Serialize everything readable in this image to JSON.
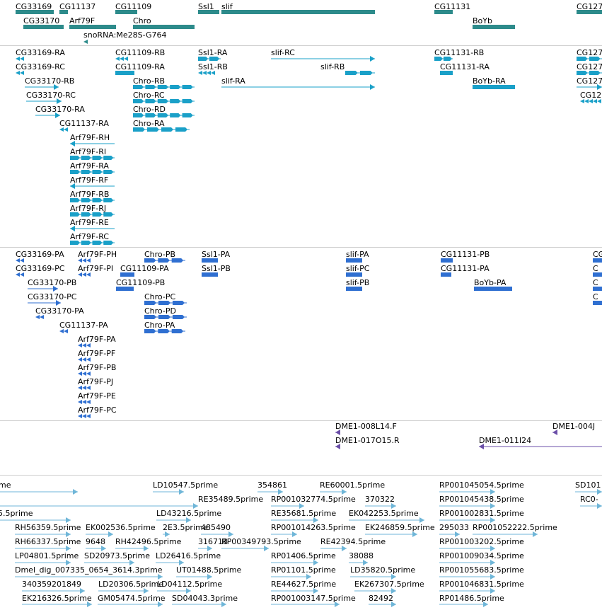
{
  "colors": {
    "gene": "#2d8b8b",
    "transcript": "#1aa0c8",
    "protein": "#2f6fd1",
    "clone": "#6b4fa8",
    "est": "#6fb6d8",
    "separator": "#cfcfcf"
  },
  "tracks": {
    "gene": {
      "features": [
        {
          "label": "CG33169"
        },
        {
          "label": "CG11137"
        },
        {
          "label": "CG11109"
        },
        {
          "label": "Ssl1"
        },
        {
          "label": "slif"
        },
        {
          "label": "CG11131"
        },
        {
          "label": "CG127"
        },
        {
          "label": "CG33170"
        },
        {
          "label": "Arf79F"
        },
        {
          "label": "Chro"
        },
        {
          "label": "BoYb"
        },
        {
          "label": "snoRNA:Me28S-G764"
        }
      ]
    },
    "transcript": {
      "features": [
        {
          "label": "CG33169-RA"
        },
        {
          "label": "CG11109-RB"
        },
        {
          "label": "Ssl1-RA"
        },
        {
          "label": "slif-RC"
        },
        {
          "label": "CG11131-RB"
        },
        {
          "label": "CG127"
        },
        {
          "label": "CG33169-RC"
        },
        {
          "label": "CG11109-RA"
        },
        {
          "label": "Ssl1-RB"
        },
        {
          "label": "slif-RB"
        },
        {
          "label": "CG11131-RA"
        },
        {
          "label": "CG127"
        },
        {
          "label": "CG33170-RB"
        },
        {
          "label": "Chro-RB"
        },
        {
          "label": "slif-RA"
        },
        {
          "label": "BoYb-RA"
        },
        {
          "label": "CG127"
        },
        {
          "label": "CG33170-RC"
        },
        {
          "label": "Chro-RC"
        },
        {
          "label": "CG12"
        },
        {
          "label": "CG33170-RA"
        },
        {
          "label": "Chro-RD"
        },
        {
          "label": "CG11137-RA"
        },
        {
          "label": "Chro-RA"
        },
        {
          "label": "Arf79F-RH"
        },
        {
          "label": "Arf79F-RI"
        },
        {
          "label": "Arf79F-RA"
        },
        {
          "label": "Arf79F-RF"
        },
        {
          "label": "Arf79F-RB"
        },
        {
          "label": "Arf79F-RJ"
        },
        {
          "label": "Arf79F-RE"
        },
        {
          "label": "Arf79F-RC"
        }
      ]
    },
    "protein": {
      "features": [
        {
          "label": "CG33169-PA"
        },
        {
          "label": "Arf79F-PH"
        },
        {
          "label": "Chro-PB"
        },
        {
          "label": "Ssl1-PA"
        },
        {
          "label": "slif-PA"
        },
        {
          "label": "CG11131-PB"
        },
        {
          "label": "CG"
        },
        {
          "label": "CG33169-PC"
        },
        {
          "label": "Arf79F-PI"
        },
        {
          "label": "CG11109-PA"
        },
        {
          "label": "Ssl1-PB"
        },
        {
          "label": "slif-PC"
        },
        {
          "label": "CG11131-PA"
        },
        {
          "label": "C"
        },
        {
          "label": "CG33170-PB"
        },
        {
          "label": "CG11109-PB"
        },
        {
          "label": "slif-PB"
        },
        {
          "label": "BoYb-PA"
        },
        {
          "label": "C"
        },
        {
          "label": "CG33170-PC"
        },
        {
          "label": "Chro-PC"
        },
        {
          "label": "C"
        },
        {
          "label": "CG33170-PA"
        },
        {
          "label": "Chro-PD"
        },
        {
          "label": "CG11137-PA"
        },
        {
          "label": "Chro-PA"
        },
        {
          "label": "Arf79F-PA"
        },
        {
          "label": "Arf79F-PF"
        },
        {
          "label": "Arf79F-PB"
        },
        {
          "label": "Arf79F-PJ"
        },
        {
          "label": "Arf79F-PE"
        },
        {
          "label": "Arf79F-PC"
        }
      ]
    },
    "clone": {
      "features": [
        {
          "label": "DME1-008L14.F"
        },
        {
          "label": "DME1-004J"
        },
        {
          "label": "DME1-017O15.R"
        },
        {
          "label": "DME1-011I24"
        }
      ]
    },
    "est": {
      "features": [
        {
          "label": "me"
        },
        {
          "label": "LD10547.5prime"
        },
        {
          "label": "354861"
        },
        {
          "label": "RE60001.5prime"
        },
        {
          "label": "RP001045054.5prime"
        },
        {
          "label": "SD101"
        },
        {
          "label": "RE35489.5prime"
        },
        {
          "label": "RP001032774.5prime"
        },
        {
          "label": "370322"
        },
        {
          "label": "RP001045438.5prime"
        },
        {
          "label": "RC0-"
        },
        {
          "label": "35.5prime"
        },
        {
          "label": "LD43216.5prime"
        },
        {
          "label": "RE35681.5prime"
        },
        {
          "label": "EK042253.5prime"
        },
        {
          "label": "RP001002831.5prime"
        },
        {
          "label": "RH56359.5prime"
        },
        {
          "label": "EK002536.5prime"
        },
        {
          "label": "2E3.5prime"
        },
        {
          "label": "485490"
        },
        {
          "label": "RP001014263.5prime"
        },
        {
          "label": "EK246859.5prime"
        },
        {
          "label": "295033"
        },
        {
          "label": "RP001052222.5prime"
        },
        {
          "label": "RH66337.5prime"
        },
        {
          "label": "9648"
        },
        {
          "label": "RH42496.5prime"
        },
        {
          "label": "316718"
        },
        {
          "label": "RP00349793.5prime"
        },
        {
          "label": "RE42394.5prime"
        },
        {
          "label": "RP001003202.5prime"
        },
        {
          "label": "LP04801.5prime"
        },
        {
          "label": "SD20973.5prime"
        },
        {
          "label": "LD26416.5prime"
        },
        {
          "label": "RP01406.5prime"
        },
        {
          "label": "38088"
        },
        {
          "label": "RP001009034.5prime"
        },
        {
          "label": "Dmel_dig_007335_0654_3614.3prime"
        },
        {
          "label": "UT01488.5prime"
        },
        {
          "label": "RP01101.5prime"
        },
        {
          "label": "LD35820.5prime"
        },
        {
          "label": "RP001055683.5prime"
        },
        {
          "label": "340359201849"
        },
        {
          "label": "LD20306.5prime"
        },
        {
          "label": "LD04112.5prime"
        },
        {
          "label": "RE44627.5prime"
        },
        {
          "label": "EK267307.5prime"
        },
        {
          "label": "RP001046831.5prime"
        },
        {
          "label": "EK216326.5prime"
        },
        {
          "label": "GM05474.5prime"
        },
        {
          "label": "SD04043.3prime"
        },
        {
          "label": "RP001003147.5prime"
        },
        {
          "label": "82492"
        },
        {
          "label": "RP01486.5prime"
        }
      ]
    }
  }
}
